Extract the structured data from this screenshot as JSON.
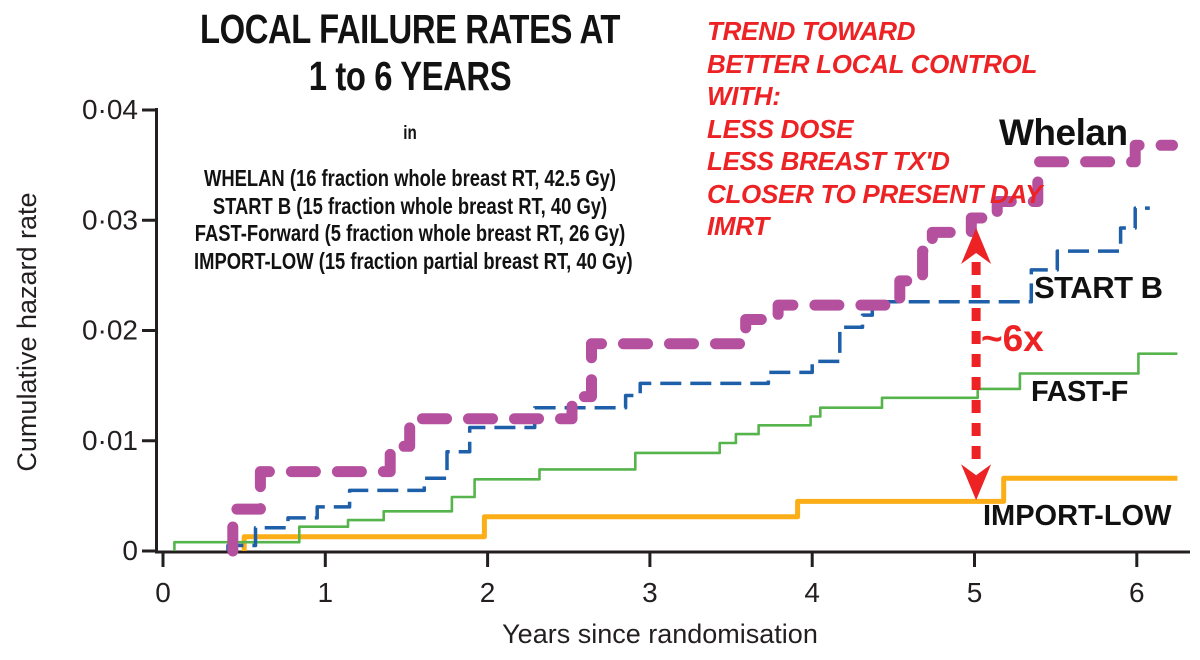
{
  "header": {
    "title_line1": "LOCAL FAILURE RATES AT",
    "title_line2": "1 to 6 YEARS",
    "connector": "in",
    "trials": [
      "WHELAN (16 fraction whole breast RT, 42.5 Gy)",
      "START B (15 fraction whole breast RT, 40 Gy)",
      "FAST-Forward (5 fraction whole breast RT, 26 Gy)",
      "IMPORT-LOW (15 fraction partial breast RT, 40 Gy)"
    ]
  },
  "annotation": {
    "color": "#ed2224",
    "lines": [
      "TREND TOWARD",
      "BETTER LOCAL CONTROL",
      "WITH:",
      "LESS DOSE",
      "LESS BREAST TX'D",
      "CLOSER TO PRESENT DAY",
      "IMRT"
    ]
  },
  "chart_data": {
    "type": "line",
    "subtype": "cumulative-hazard-step",
    "title": "LOCAL FAILURE RATES AT 1 to 6 YEARS",
    "xlabel": "Years since randomisation",
    "ylabel": "Cumulative hazard rate",
    "xlim": [
      0,
      6.35
    ],
    "ylim": [
      0,
      0.04
    ],
    "grid": false,
    "legend_position": "inline-labels",
    "axis_color": "#231f20",
    "x_ticks": [
      0,
      1,
      2,
      3,
      4,
      5,
      6
    ],
    "x_tick_labels": [
      "0",
      "1",
      "2",
      "3",
      "4",
      "5",
      "6"
    ],
    "y_ticks": [
      0,
      0.01,
      0.02,
      0.03,
      0.04
    ],
    "y_tick_labels": [
      "0",
      "0·01",
      "0·02",
      "0·03",
      "0·04"
    ],
    "series": [
      {
        "name": "Whelan",
        "label": "Whelan",
        "color": "#b4509e",
        "line": "thick-dashed",
        "points": [
          [
            0.43,
            0
          ],
          [
            0.43,
            0.0038
          ],
          [
            0.6,
            0.0038
          ],
          [
            0.6,
            0.0072
          ],
          [
            1.4,
            0.0072
          ],
          [
            1.4,
            0.0095
          ],
          [
            1.52,
            0.0095
          ],
          [
            1.52,
            0.012
          ],
          [
            2.52,
            0.012
          ],
          [
            2.52,
            0.014
          ],
          [
            2.64,
            0.014
          ],
          [
            2.64,
            0.0188
          ],
          [
            3.59,
            0.0188
          ],
          [
            3.59,
            0.021
          ],
          [
            3.79,
            0.021
          ],
          [
            3.79,
            0.0223
          ],
          [
            4.54,
            0.0223
          ],
          [
            4.54,
            0.0245
          ],
          [
            4.68,
            0.0245
          ],
          [
            4.68,
            0.0272
          ],
          [
            4.74,
            0.0272
          ],
          [
            4.74,
            0.0289
          ],
          [
            4.98,
            0.0289
          ],
          [
            4.98,
            0.0302
          ],
          [
            5.14,
            0.0302
          ],
          [
            5.14,
            0.0317
          ],
          [
            5.39,
            0.0317
          ],
          [
            5.39,
            0.0353
          ],
          [
            5.99,
            0.0353
          ],
          [
            5.99,
            0.0368
          ],
          [
            6.22,
            0.0368
          ]
        ]
      },
      {
        "name": "START B",
        "label": "START B",
        "color": "#1e5fa9",
        "line": "dashed",
        "points": [
          [
            0.4,
            0
          ],
          [
            0.4,
            0.0005
          ],
          [
            0.57,
            0.0005
          ],
          [
            0.57,
            0.0021
          ],
          [
            0.77,
            0.0021
          ],
          [
            0.77,
            0.003
          ],
          [
            0.95,
            0.003
          ],
          [
            0.95,
            0.004
          ],
          [
            1.15,
            0.004
          ],
          [
            1.15,
            0.0055
          ],
          [
            1.61,
            0.0055
          ],
          [
            1.61,
            0.0066
          ],
          [
            1.75,
            0.0066
          ],
          [
            1.75,
            0.009
          ],
          [
            1.89,
            0.009
          ],
          [
            1.89,
            0.0112
          ],
          [
            2.29,
            0.0112
          ],
          [
            2.29,
            0.013
          ],
          [
            2.85,
            0.013
          ],
          [
            2.85,
            0.0141
          ],
          [
            2.94,
            0.0141
          ],
          [
            2.94,
            0.0152
          ],
          [
            3.73,
            0.0152
          ],
          [
            3.73,
            0.0162
          ],
          [
            4.0,
            0.0162
          ],
          [
            4.0,
            0.0172
          ],
          [
            4.17,
            0.0172
          ],
          [
            4.17,
            0.0203
          ],
          [
            4.31,
            0.0203
          ],
          [
            4.31,
            0.0214
          ],
          [
            4.37,
            0.0214
          ],
          [
            4.37,
            0.0226
          ],
          [
            5.35,
            0.0226
          ],
          [
            5.35,
            0.0255
          ],
          [
            5.51,
            0.0255
          ],
          [
            5.51,
            0.0272
          ],
          [
            5.9,
            0.0272
          ],
          [
            5.9,
            0.0293
          ],
          [
            5.99,
            0.0293
          ],
          [
            5.99,
            0.0311
          ],
          [
            6.08,
            0.0311
          ]
        ]
      },
      {
        "name": "FAST-Forward",
        "label": "FAST-F",
        "color": "#56b44c",
        "line": "solid-thin",
        "points": [
          [
            0.07,
            0
          ],
          [
            0.07,
            0.0008
          ],
          [
            0.84,
            0.0008
          ],
          [
            0.84,
            0.0022
          ],
          [
            1.14,
            0.0022
          ],
          [
            1.14,
            0.0028
          ],
          [
            1.36,
            0.0028
          ],
          [
            1.36,
            0.0036
          ],
          [
            1.78,
            0.0036
          ],
          [
            1.78,
            0.0049
          ],
          [
            1.92,
            0.0049
          ],
          [
            1.92,
            0.0065
          ],
          [
            2.32,
            0.0065
          ],
          [
            2.32,
            0.0074
          ],
          [
            2.91,
            0.0074
          ],
          [
            2.91,
            0.0089
          ],
          [
            3.43,
            0.0089
          ],
          [
            3.43,
            0.0098
          ],
          [
            3.53,
            0.0098
          ],
          [
            3.53,
            0.0106
          ],
          [
            3.67,
            0.0106
          ],
          [
            3.67,
            0.0114
          ],
          [
            3.99,
            0.0114
          ],
          [
            3.99,
            0.0122
          ],
          [
            4.05,
            0.0122
          ],
          [
            4.05,
            0.013
          ],
          [
            4.43,
            0.013
          ],
          [
            4.43,
            0.0139
          ],
          [
            5.02,
            0.0139
          ],
          [
            5.02,
            0.0147
          ],
          [
            5.28,
            0.0147
          ],
          [
            5.28,
            0.0161
          ],
          [
            6.01,
            0.0161
          ],
          [
            6.01,
            0.0179
          ],
          [
            6.25,
            0.0179
          ]
        ]
      },
      {
        "name": "IMPORT-LOW",
        "label": "IMPORT-LOW",
        "color": "#fbae17",
        "line": "solid-thick",
        "points": [
          [
            0.5,
            0
          ],
          [
            0.5,
            0.0013
          ],
          [
            1.98,
            0.0013
          ],
          [
            1.98,
            0.0031
          ],
          [
            3.91,
            0.0031
          ],
          [
            3.91,
            0.0045
          ],
          [
            5.18,
            0.0045
          ],
          [
            5.18,
            0.0066
          ],
          [
            6.25,
            0.0066
          ]
        ]
      }
    ],
    "annotation_arrow": {
      "label": "~6x",
      "color": "#ed2224",
      "x_year": 5.01,
      "top_rate": 0.0293,
      "bottom_rate": 0.0046
    }
  }
}
